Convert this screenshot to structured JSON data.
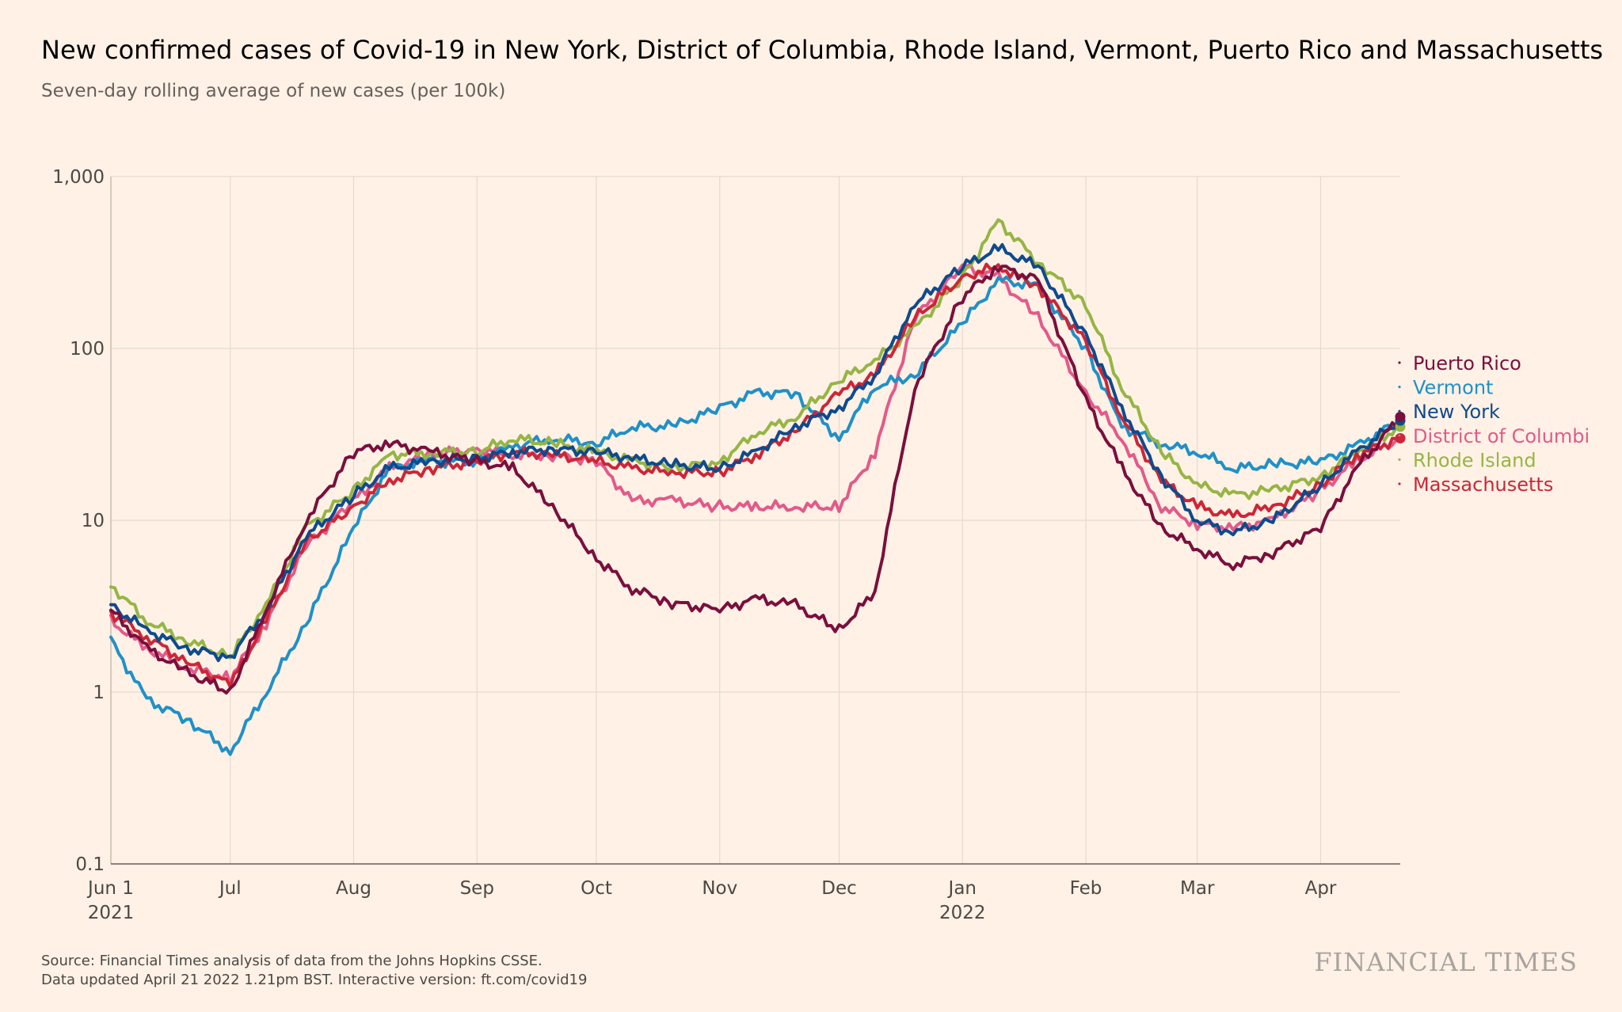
{
  "title": "New confirmed cases of Covid-19 in New York, District of Columbia, Rhode Island, Vermont, Puerto Rico and Massachusetts",
  "subtitle": "Seven-day rolling average of new cases (per 100k)",
  "source_line1": "Source: Financial Times analysis of data from the Johns Hopkins CSSE.",
  "source_line2": "Data updated April 21 2022 1.21pm BST. Interactive version: ft.com/covid19",
  "brand": "FINANCIAL TIMES",
  "chart_data": {
    "type": "line",
    "y_scale": "log",
    "ylim": [
      0.1,
      1000
    ],
    "yticks": [
      {
        "v": 0.1,
        "label": "0.1"
      },
      {
        "v": 1,
        "label": "1"
      },
      {
        "v": 10,
        "label": "10"
      },
      {
        "v": 100,
        "label": "100"
      },
      {
        "v": 1000,
        "label": "1,000"
      }
    ],
    "xlim": [
      "2021-06-01",
      "2022-04-21"
    ],
    "xticks": [
      {
        "date": "2021-06-01",
        "label": "Jun 1",
        "sub": "2021"
      },
      {
        "date": "2021-07-01",
        "label": "Jul",
        "sub": ""
      },
      {
        "date": "2021-08-01",
        "label": "Aug",
        "sub": ""
      },
      {
        "date": "2021-09-01",
        "label": "Sep",
        "sub": ""
      },
      {
        "date": "2021-10-01",
        "label": "Oct",
        "sub": ""
      },
      {
        "date": "2021-11-01",
        "label": "Nov",
        "sub": ""
      },
      {
        "date": "2021-12-01",
        "label": "Dec",
        "sub": ""
      },
      {
        "date": "2022-01-01",
        "label": "Jan",
        "sub": "2022"
      },
      {
        "date": "2022-02-01",
        "label": "Feb",
        "sub": ""
      },
      {
        "date": "2022-03-01",
        "label": "Mar",
        "sub": ""
      },
      {
        "date": "2022-04-01",
        "label": "Apr",
        "sub": ""
      }
    ],
    "grid": true,
    "legend": "right",
    "x_dates": [
      "2021-06-01",
      "2021-06-10",
      "2021-06-20",
      "2021-07-01",
      "2021-07-10",
      "2021-07-20",
      "2021-08-01",
      "2021-08-10",
      "2021-08-20",
      "2021-09-01",
      "2021-09-10",
      "2021-09-20",
      "2021-10-01",
      "2021-10-10",
      "2021-10-20",
      "2021-11-01",
      "2021-11-10",
      "2021-11-20",
      "2021-12-01",
      "2021-12-10",
      "2021-12-20",
      "2022-01-01",
      "2022-01-10",
      "2022-01-20",
      "2022-02-01",
      "2022-02-10",
      "2022-02-20",
      "2022-03-01",
      "2022-03-10",
      "2022-03-20",
      "2022-04-01",
      "2022-04-10",
      "2022-04-21"
    ],
    "series": [
      {
        "name": "Puerto Rico",
        "color": "#7a0f3d",
        "values": [
          3.0,
          1.8,
          1.3,
          1.0,
          3.0,
          10,
          25,
          28,
          25,
          22,
          20,
          12,
          6.0,
          4.0,
          3.3,
          3.0,
          3.5,
          3.2,
          2.3,
          3.8,
          60,
          200,
          300,
          250,
          50,
          20,
          9.0,
          6.8,
          5.5,
          6.5,
          9.0,
          20,
          40
        ]
      },
      {
        "name": "Vermont",
        "color": "#2090c8",
        "values": [
          2.0,
          0.9,
          0.7,
          0.45,
          1.0,
          2.5,
          9.0,
          20,
          22,
          22,
          27,
          30,
          28,
          35,
          35,
          45,
          55,
          55,
          30,
          60,
          70,
          140,
          250,
          230,
          100,
          35,
          28,
          25,
          20,
          21,
          22,
          27,
          38
        ]
      },
      {
        "name": "New York",
        "color": "#0f4a8c",
        "values": [
          3.2,
          2.3,
          1.8,
          1.6,
          3.0,
          8.0,
          14,
          20,
          22,
          23,
          25,
          26,
          25,
          23,
          21,
          20,
          25,
          35,
          45,
          70,
          180,
          300,
          380,
          300,
          120,
          45,
          18,
          10,
          8.5,
          10,
          16,
          25,
          38
        ]
      },
      {
        "name": "District of Columbia",
        "color": "#e25a8a",
        "values": [
          2.6,
          1.8,
          1.4,
          1.2,
          2.5,
          7.0,
          13,
          20,
          24,
          26,
          24,
          24,
          22,
          13,
          13,
          12,
          12,
          12,
          12,
          25,
          150,
          300,
          260,
          150,
          55,
          30,
          12,
          9.5,
          9,
          10,
          15,
          22,
          30
        ]
      },
      {
        "name": "Rhode Island",
        "color": "#96b545",
        "values": [
          4.2,
          2.6,
          2.0,
          1.6,
          3.2,
          9.0,
          15,
          24,
          25,
          25,
          30,
          28,
          25,
          22,
          20,
          22,
          32,
          40,
          65,
          85,
          130,
          260,
          550,
          320,
          180,
          60,
          25,
          16,
          14,
          15,
          18,
          25,
          35
        ]
      },
      {
        "name": "Massachusetts",
        "color": "#cc2638",
        "values": [
          2.9,
          2.1,
          1.5,
          1.1,
          2.6,
          7.5,
          12,
          17,
          20,
          22,
          25,
          24,
          22,
          20,
          19,
          19,
          24,
          33,
          55,
          70,
          150,
          260,
          300,
          230,
          110,
          40,
          17,
          12,
          10.5,
          12,
          16,
          24,
          30
        ]
      }
    ],
    "legend_order": [
      "Puerto Rico",
      "Vermont",
      "New York",
      "District of Columbi",
      "Rhode Island",
      "Massachusetts"
    ]
  }
}
